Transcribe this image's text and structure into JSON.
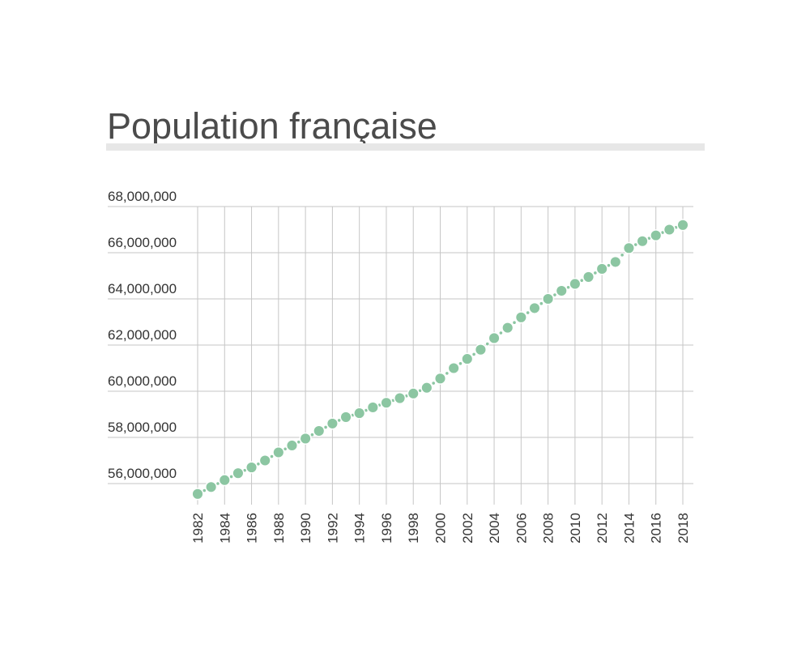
{
  "header": {
    "title": "Population française"
  },
  "colors": {
    "background": "#ffffff",
    "title": "#4b4b4b",
    "divider": "#e7e7e7",
    "grid": "#c6c6c6",
    "axis_label": "#333333",
    "dot": "#8cc6a2",
    "dot_outline": "#ffffff"
  },
  "chart_data": {
    "type": "line",
    "style": "dotted-connector-with-round-markers",
    "title": "Population française",
    "xlabel": "",
    "ylabel": "",
    "grid": true,
    "legend": false,
    "series_name": "Population",
    "x": [
      1982,
      1983,
      1984,
      1985,
      1986,
      1987,
      1988,
      1989,
      1990,
      1991,
      1992,
      1993,
      1994,
      1995,
      1996,
      1997,
      1998,
      1999,
      2000,
      2001,
      2002,
      2003,
      2004,
      2005,
      2006,
      2007,
      2008,
      2009,
      2010,
      2011,
      2012,
      2013,
      2014,
      2015,
      2016,
      2017,
      2018
    ],
    "values": [
      55550000,
      55850000,
      56150000,
      56450000,
      56700000,
      57000000,
      57350000,
      57650000,
      57950000,
      58280000,
      58600000,
      58880000,
      59050000,
      59300000,
      59500000,
      59700000,
      59900000,
      60150000,
      60550000,
      61000000,
      61400000,
      61800000,
      62300000,
      62750000,
      63200000,
      63600000,
      64000000,
      64350000,
      64650000,
      64950000,
      65300000,
      65600000,
      66200000,
      66500000,
      66750000,
      67000000,
      67200000
    ],
    "x_ticks": [
      1982,
      1984,
      1986,
      1988,
      1990,
      1992,
      1994,
      1996,
      1998,
      2000,
      2002,
      2004,
      2006,
      2008,
      2010,
      2012,
      2014,
      2016,
      2018
    ],
    "x_tick_labels": [
      "1982",
      "1984",
      "1986",
      "1988",
      "1990",
      "1992",
      "1994",
      "1996",
      "1998",
      "2000",
      "2002",
      "2004",
      "2006",
      "2008",
      "2010",
      "2012",
      "2014",
      "2016",
      "2018"
    ],
    "y_ticks": [
      56000000,
      58000000,
      60000000,
      62000000,
      64000000,
      66000000,
      68000000
    ],
    "y_tick_labels": [
      "56,000,000",
      "58,000,000",
      "60,000,000",
      "62,000,000",
      "64,000,000",
      "66,000,000",
      "68,000,000"
    ],
    "ylim": [
      55200000,
      68000000
    ],
    "xlim": [
      1982,
      2018
    ]
  }
}
